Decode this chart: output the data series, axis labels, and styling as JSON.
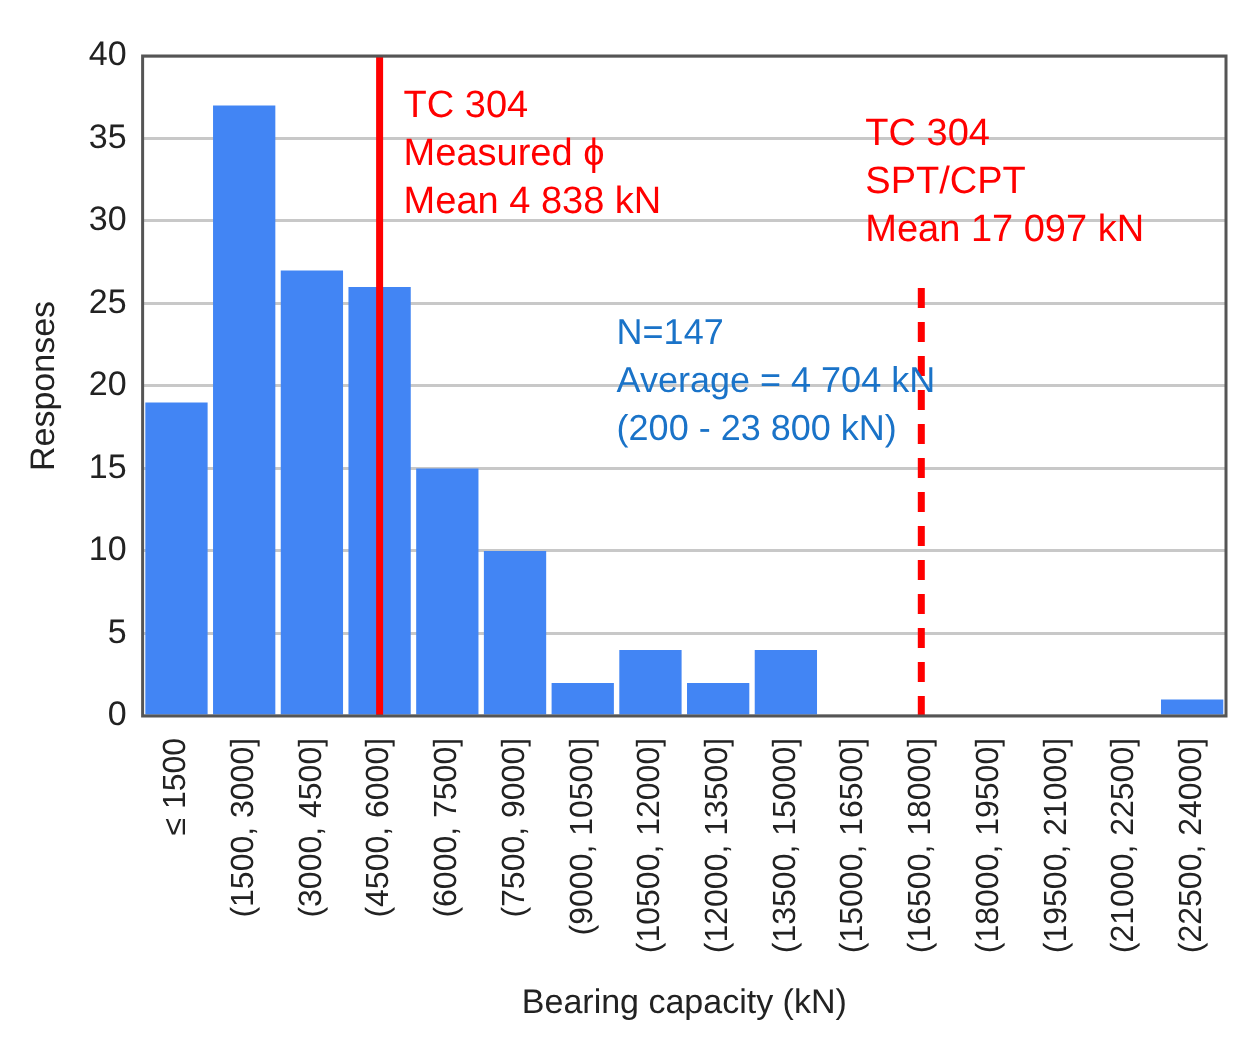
{
  "chart_data": {
    "type": "bar",
    "xlabel": "Bearing capacity (kN)",
    "ylabel": "Responses",
    "categories": [
      "≤ 1500",
      "(1500, 3000]",
      "(3000, 4500]",
      "(4500, 6000]",
      "(6000, 7500]",
      "(7500, 9000]",
      "(9000, 10500]",
      "(10500, 12000]",
      "(12000, 13500]",
      "(13500, 15000]",
      "(15000, 16500]",
      "(16500, 18000]",
      "(18000, 19500]",
      "(19500, 21000]",
      "(21000, 22500]",
      "(22500, 24000]"
    ],
    "values": [
      19,
      37,
      27,
      26,
      15,
      10,
      2,
      4,
      2,
      4,
      0,
      0,
      0,
      0,
      0,
      1
    ],
    "color": "#4285f4",
    "ylim": [
      0,
      40
    ],
    "yticks": [
      0,
      5,
      10,
      15,
      20,
      25,
      30,
      35,
      40
    ],
    "grid": "y",
    "legend": false,
    "ref_lines": [
      {
        "axis": "x",
        "value": "(4500, 6000]",
        "label": "TC 304\nMeasured ϕ\nMean 4 838 kN",
        "color": "#ff0000",
        "line_style": "solid"
      },
      {
        "axis": "x",
        "value": "(16500, 18000]",
        "label": "TC 304\nSPT/CPT\nMean 17 097 kN",
        "color": "#ff0000",
        "line_style": "dashed"
      }
    ],
    "annotations": [
      "N=147\nAverage = 4 704 kN\n(200 - 23 800 kN)"
    ]
  }
}
